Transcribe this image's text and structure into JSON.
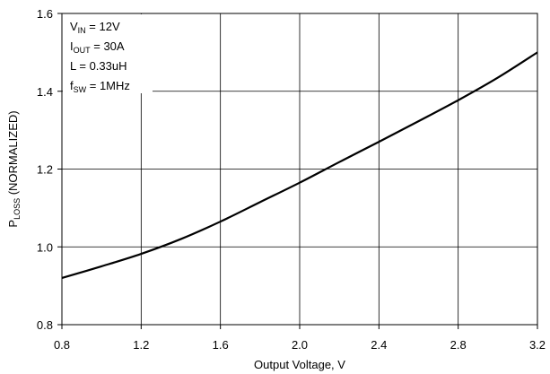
{
  "chart_data": {
    "type": "line",
    "title": "",
    "xlabel": "Output Voltage, V",
    "ylabel": {
      "main": "P",
      "sub": "LOSS",
      "rest": " (NORMALIZED)"
    },
    "xlim": [
      0.8,
      3.2
    ],
    "ylim": [
      0.8,
      1.6
    ],
    "x_ticks": [
      "0.8",
      "1.2",
      "1.6",
      "2.0",
      "2.4",
      "2.8",
      "3.2"
    ],
    "y_ticks": [
      "0.8",
      "1.0",
      "1.2",
      "1.4",
      "1.6"
    ],
    "x_tick_values": [
      0.8,
      1.2,
      1.6,
      2.0,
      2.4,
      2.8,
      3.2
    ],
    "y_tick_values": [
      0.8,
      1.0,
      1.2,
      1.4,
      1.6
    ],
    "grid": true,
    "series": [
      {
        "color": "#000000",
        "x": [
          0.8,
          1.0,
          1.2,
          1.4,
          1.6,
          1.8,
          2.0,
          2.2,
          2.4,
          2.6,
          2.8,
          3.0,
          3.2
        ],
        "y": [
          0.92,
          0.95,
          0.982,
          1.02,
          1.065,
          1.115,
          1.165,
          1.218,
          1.27,
          1.323,
          1.377,
          1.435,
          1.5
        ]
      }
    ],
    "annotations": [
      {
        "main": "V",
        "sub": "IN",
        "rest": " = 12V"
      },
      {
        "main": "I",
        "sub": "OUT",
        "rest": " = 30A"
      },
      {
        "main": "L = 0.33uH",
        "sub": "",
        "rest": ""
      },
      {
        "main": "f",
        "sub": "SW",
        "rest": " = 1MHz"
      }
    ]
  }
}
